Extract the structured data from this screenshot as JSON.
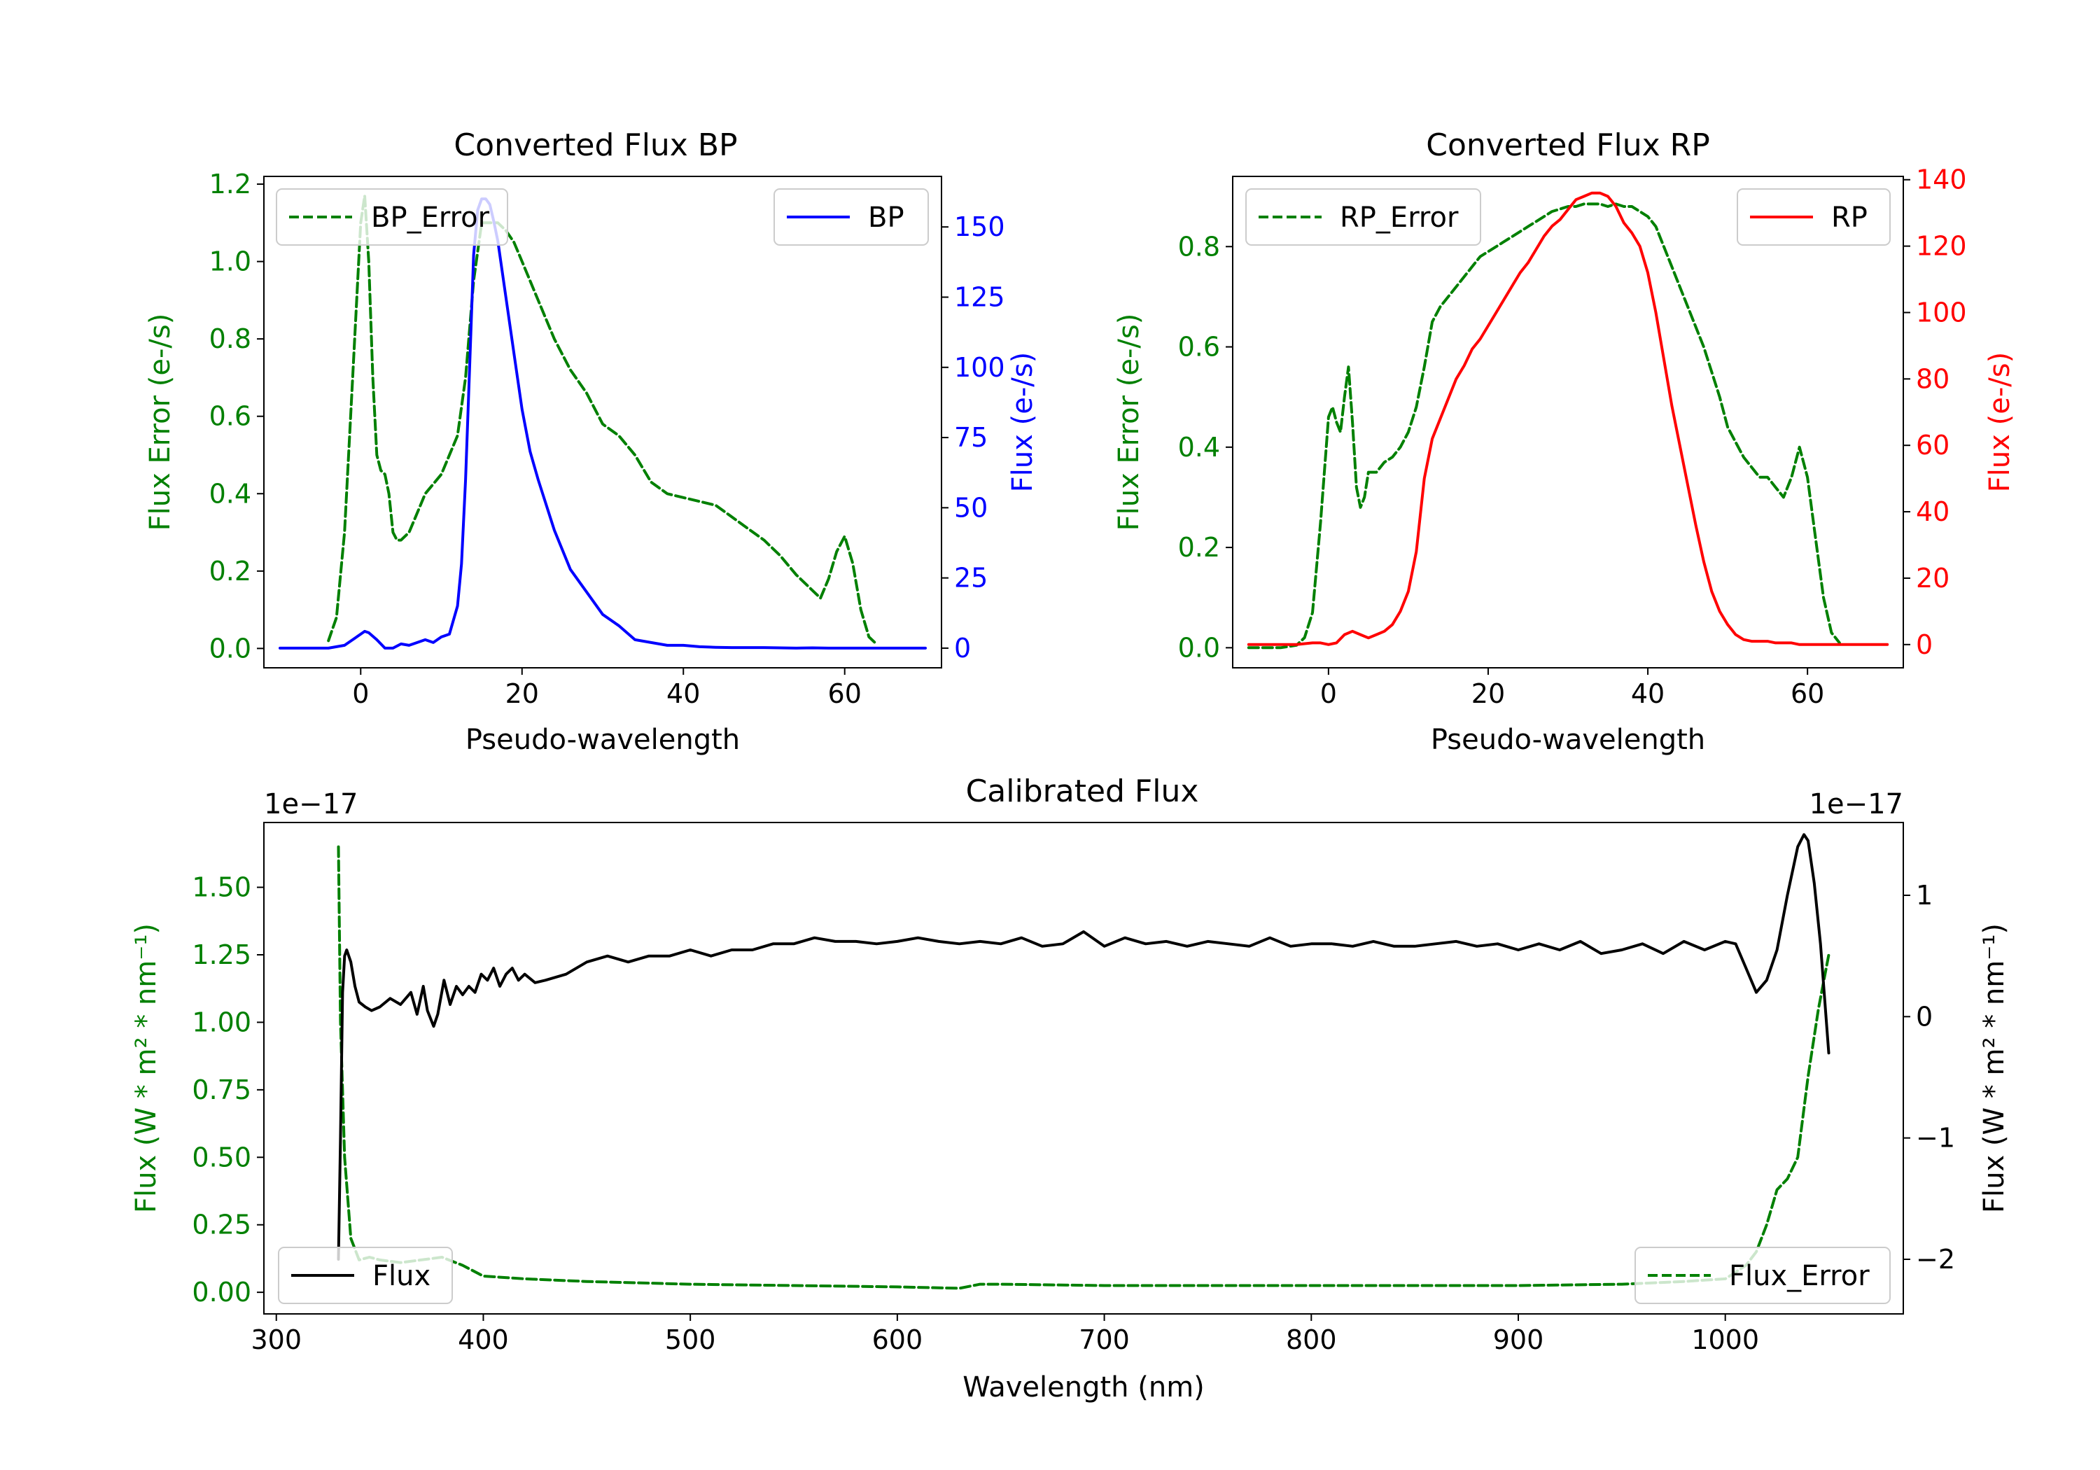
{
  "chart_data": [
    {
      "type": "line",
      "id": "bp",
      "title": "Converted Flux BP",
      "xlabel": "Pseudo-wavelength",
      "ylabel_left": "Flux Error (e-/s)",
      "ylabel_right": "Flux (e-/s)",
      "xlim": [
        -12,
        72
      ],
      "ylim_left": [
        -0.05,
        1.22
      ],
      "ylim_right": [
        -7,
        168
      ],
      "xticks": [
        0,
        20,
        40,
        60
      ],
      "yticks_left": [
        "0.0",
        "0.2",
        "0.4",
        "0.6",
        "0.8",
        "1.0",
        "1.2"
      ],
      "yticks_right": [
        "0",
        "25",
        "50",
        "75",
        "100",
        "125",
        "150"
      ],
      "colors": {
        "left": "#008000",
        "right": "#0000ff"
      },
      "legend_left": {
        "label": "BP_Error",
        "position": "upper left"
      },
      "legend_right": {
        "label": "BP",
        "position": "upper right"
      },
      "series": [
        {
          "name": "BP_Error",
          "axis": "left",
          "color": "#008000",
          "dash": true,
          "x": [
            -4,
            -3,
            -2,
            -1,
            0,
            0.5,
            1,
            1.5,
            2,
            2.5,
            3,
            3.5,
            4,
            4.5,
            5,
            6,
            7,
            8,
            10,
            12,
            13,
            14,
            15,
            16,
            17,
            18,
            19,
            20,
            22,
            24,
            26,
            28,
            30,
            32,
            34,
            36,
            38,
            40,
            42,
            44,
            46,
            48,
            50,
            52,
            54,
            56,
            57,
            58,
            59,
            60,
            61,
            62,
            63,
            64
          ],
          "y": [
            0.02,
            0.08,
            0.3,
            0.7,
            1.1,
            1.17,
            1.0,
            0.7,
            0.5,
            0.46,
            0.45,
            0.4,
            0.3,
            0.28,
            0.28,
            0.3,
            0.35,
            0.4,
            0.45,
            0.55,
            0.7,
            0.95,
            1.1,
            1.1,
            1.1,
            1.08,
            1.05,
            1.0,
            0.9,
            0.8,
            0.72,
            0.66,
            0.58,
            0.55,
            0.5,
            0.43,
            0.4,
            0.39,
            0.38,
            0.37,
            0.34,
            0.31,
            0.28,
            0.24,
            0.19,
            0.15,
            0.13,
            0.18,
            0.25,
            0.29,
            0.22,
            0.1,
            0.03,
            0.01
          ]
        },
        {
          "name": "BP",
          "axis": "right",
          "color": "#0000ff",
          "dash": false,
          "x": [
            -10,
            -8,
            -6,
            -4,
            -2,
            -1,
            0,
            0.5,
            1,
            2,
            3,
            4,
            5,
            6,
            7,
            8,
            9,
            10,
            11,
            12,
            12.5,
            13,
            13.5,
            14,
            14.5,
            15,
            15.5,
            16,
            16.5,
            17,
            18,
            19,
            20,
            21,
            22,
            24,
            26,
            28,
            30,
            32,
            34,
            36,
            38,
            40,
            42,
            44,
            46,
            48,
            50,
            52,
            54,
            56,
            58,
            60,
            62,
            64,
            66,
            68,
            70
          ],
          "y": [
            0,
            0,
            0,
            0,
            1,
            3,
            5,
            6,
            5.5,
            3,
            0,
            0,
            1.5,
            1,
            2,
            3,
            2,
            4,
            5,
            15,
            30,
            60,
            100,
            140,
            156,
            160,
            160,
            158,
            152,
            145,
            125,
            105,
            85,
            70,
            60,
            42,
            28,
            20,
            12,
            8,
            3,
            2,
            1,
            1,
            0.5,
            0.3,
            0.2,
            0.2,
            0.2,
            0.1,
            0,
            0.1,
            0,
            0,
            0,
            0,
            0,
            0,
            0
          ]
        }
      ]
    },
    {
      "type": "line",
      "id": "rp",
      "title": "Converted Flux RP",
      "xlabel": "Pseudo-wavelength",
      "ylabel_left": "Flux Error (e-/s)",
      "ylabel_right": "Flux (e-/s)",
      "xlim": [
        -12,
        72
      ],
      "ylim_left": [
        -0.04,
        0.94
      ],
      "ylim_right": [
        -7,
        141
      ],
      "xticks": [
        0,
        20,
        40,
        60
      ],
      "yticks_left": [
        "0.0",
        "0.2",
        "0.4",
        "0.6",
        "0.8"
      ],
      "yticks_right": [
        "0",
        "20",
        "40",
        "60",
        "80",
        "100",
        "120",
        "140"
      ],
      "colors": {
        "left": "#008000",
        "right": "#ff0000"
      },
      "legend_left": {
        "label": "RP_Error",
        "position": "upper left"
      },
      "legend_right": {
        "label": "RP",
        "position": "upper right"
      },
      "series": [
        {
          "name": "RP_Error",
          "axis": "left",
          "color": "#008000",
          "dash": true,
          "x": [
            -10,
            -8,
            -6,
            -4,
            -3,
            -2,
            -1,
            0,
            0.5,
            1,
            1.5,
            2,
            2.5,
            3,
            3.5,
            4,
            4.5,
            5,
            6,
            7,
            8,
            9,
            10,
            11,
            12,
            13,
            14,
            15,
            16,
            17,
            18,
            19,
            20,
            21,
            22,
            23,
            24,
            25,
            26,
            27,
            28,
            29,
            30,
            31,
            32,
            33,
            34,
            35,
            36,
            37,
            38,
            39,
            40,
            41,
            42,
            43,
            44,
            45,
            46,
            47,
            48,
            49,
            50,
            51,
            52,
            53,
            54,
            55,
            56,
            57,
            58,
            59,
            60,
            61,
            62,
            63,
            64
          ],
          "y": [
            0,
            0,
            0,
            0.005,
            0.02,
            0.07,
            0.25,
            0.46,
            0.48,
            0.45,
            0.43,
            0.5,
            0.56,
            0.45,
            0.32,
            0.28,
            0.3,
            0.35,
            0.35,
            0.37,
            0.38,
            0.4,
            0.43,
            0.48,
            0.56,
            0.65,
            0.68,
            0.7,
            0.72,
            0.74,
            0.76,
            0.78,
            0.79,
            0.8,
            0.81,
            0.82,
            0.83,
            0.84,
            0.85,
            0.86,
            0.87,
            0.875,
            0.88,
            0.88,
            0.885,
            0.885,
            0.885,
            0.88,
            0.885,
            0.88,
            0.88,
            0.87,
            0.86,
            0.84,
            0.8,
            0.76,
            0.72,
            0.68,
            0.64,
            0.6,
            0.55,
            0.5,
            0.44,
            0.41,
            0.38,
            0.36,
            0.34,
            0.34,
            0.32,
            0.3,
            0.34,
            0.4,
            0.34,
            0.22,
            0.1,
            0.03,
            0.01
          ]
        },
        {
          "name": "RP",
          "axis": "right",
          "color": "#ff0000",
          "dash": false,
          "x": [
            -10,
            -8,
            -6,
            -4,
            -2,
            -1,
            0,
            1,
            2,
            3,
            4,
            5,
            6,
            7,
            8,
            9,
            10,
            11,
            12,
            13,
            14,
            15,
            16,
            17,
            18,
            19,
            20,
            21,
            22,
            23,
            24,
            25,
            26,
            27,
            28,
            29,
            30,
            31,
            32,
            33,
            34,
            35,
            36,
            37,
            38,
            39,
            40,
            41,
            42,
            43,
            44,
            45,
            46,
            47,
            48,
            49,
            50,
            51,
            52,
            53,
            54,
            55,
            56,
            57,
            58,
            59,
            60,
            62,
            64,
            66,
            68,
            70
          ],
          "y": [
            0,
            0,
            0,
            0,
            0.5,
            0.5,
            0,
            0.5,
            3,
            4,
            3,
            2,
            3,
            4,
            6,
            10,
            16,
            28,
            50,
            62,
            68,
            74,
            80,
            84,
            89,
            92,
            96,
            100,
            104,
            108,
            112,
            115,
            119,
            123,
            126,
            128,
            131,
            134,
            135,
            136,
            136,
            135,
            132,
            127,
            124,
            120,
            112,
            100,
            86,
            72,
            60,
            48,
            36,
            25,
            16,
            10,
            6,
            3,
            1.5,
            1,
            1,
            1,
            0.5,
            0.5,
            0.5,
            0,
            0,
            0,
            0,
            0,
            0,
            0
          ]
        }
      ]
    },
    {
      "type": "line",
      "id": "cal",
      "title": "Calibrated Flux",
      "xlabel": "Wavelength (nm)",
      "ylabel_left": "Flux (W * m² * nm⁻¹)",
      "ylabel_right": "Flux (W * m² * nm⁻¹)",
      "offset_left": "1e−17",
      "offset_right": "1e−17",
      "xlim": [
        294,
        1086
      ],
      "ylim_left": [
        -0.08,
        1.74
      ],
      "ylim_right": [
        -2.45,
        1.6
      ],
      "xticks": [
        300,
        400,
        500,
        600,
        700,
        800,
        900,
        1000
      ],
      "yticks_left": [
        "0.00",
        "0.25",
        "0.50",
        "0.75",
        "1.00",
        "1.25",
        "1.50"
      ],
      "yticks_right": [
        "−2",
        "−1",
        "0",
        "1"
      ],
      "colors": {
        "left": "#008000",
        "right": "#000000"
      },
      "legend_left": {
        "label": "Flux",
        "position": "lower left"
      },
      "legend_right": {
        "label": "Flux_Error",
        "position": "lower right"
      },
      "series": [
        {
          "name": "Flux_Error",
          "axis": "left",
          "color": "#008000",
          "dash": true,
          "x": [
            330,
            331,
            333,
            336,
            340,
            345,
            350,
            360,
            370,
            380,
            390,
            400,
            420,
            450,
            500,
            550,
            600,
            630,
            640,
            650,
            700,
            750,
            800,
            850,
            900,
            950,
            980,
            1000,
            1010,
            1015,
            1020,
            1025,
            1030,
            1035,
            1040,
            1045,
            1050
          ],
          "y": [
            1.65,
            1.0,
            0.5,
            0.2,
            0.12,
            0.13,
            0.12,
            0.11,
            0.12,
            0.13,
            0.1,
            0.06,
            0.05,
            0.04,
            0.03,
            0.025,
            0.02,
            0.015,
            0.03,
            0.03,
            0.025,
            0.025,
            0.025,
            0.025,
            0.025,
            0.03,
            0.04,
            0.05,
            0.1,
            0.15,
            0.25,
            0.38,
            0.42,
            0.5,
            0.8,
            1.05,
            1.25
          ]
        },
        {
          "name": "Flux",
          "axis": "right",
          "color": "#000000",
          "dash": false,
          "x": [
            330,
            331,
            332,
            333,
            334,
            336,
            338,
            340,
            343,
            346,
            350,
            355,
            360,
            365,
            368,
            371,
            373,
            376,
            378,
            381,
            384,
            387,
            390,
            393,
            396,
            399,
            402,
            405,
            408,
            411,
            414,
            417,
            420,
            425,
            430,
            440,
            450,
            460,
            470,
            480,
            490,
            500,
            510,
            520,
            530,
            540,
            550,
            560,
            570,
            580,
            590,
            600,
            610,
            620,
            630,
            640,
            650,
            660,
            670,
            680,
            690,
            700,
            710,
            720,
            730,
            740,
            750,
            760,
            770,
            780,
            790,
            800,
            810,
            820,
            830,
            840,
            850,
            860,
            870,
            880,
            890,
            900,
            910,
            920,
            930,
            940,
            950,
            960,
            970,
            980,
            990,
            1000,
            1005,
            1010,
            1015,
            1020,
            1025,
            1030,
            1035,
            1038,
            1040,
            1043,
            1046,
            1050
          ],
          "y": [
            -2,
            -1.0,
            0.2,
            0.5,
            0.55,
            0.45,
            0.25,
            0.12,
            0.08,
            0.05,
            0.08,
            0.15,
            0.1,
            0.2,
            0.02,
            0.25,
            0.05,
            -0.08,
            0.02,
            0.3,
            0.1,
            0.25,
            0.18,
            0.25,
            0.2,
            0.35,
            0.3,
            0.4,
            0.25,
            0.35,
            0.4,
            0.3,
            0.35,
            0.28,
            0.3,
            0.35,
            0.45,
            0.5,
            0.45,
            0.5,
            0.5,
            0.55,
            0.5,
            0.55,
            0.55,
            0.6,
            0.6,
            0.65,
            0.62,
            0.62,
            0.6,
            0.62,
            0.65,
            0.62,
            0.6,
            0.62,
            0.6,
            0.65,
            0.58,
            0.6,
            0.7,
            0.58,
            0.65,
            0.6,
            0.62,
            0.58,
            0.62,
            0.6,
            0.58,
            0.65,
            0.58,
            0.6,
            0.6,
            0.58,
            0.62,
            0.58,
            0.58,
            0.6,
            0.62,
            0.58,
            0.6,
            0.55,
            0.6,
            0.55,
            0.62,
            0.52,
            0.55,
            0.6,
            0.52,
            0.62,
            0.55,
            0.62,
            0.6,
            0.4,
            0.2,
            0.3,
            0.55,
            1.0,
            1.4,
            1.5,
            1.45,
            1.1,
            0.6,
            -0.3
          ]
        }
      ]
    }
  ]
}
